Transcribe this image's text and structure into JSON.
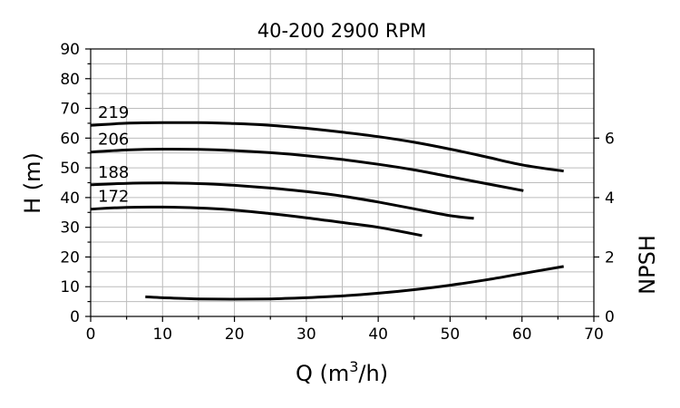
{
  "chart_data": {
    "type": "line",
    "title": "40-200 2900 RPM",
    "xlabel": "Q (m³/h)",
    "ylabel": "H (m)",
    "y2label": "NPSH",
    "xlim": [
      0,
      70
    ],
    "ylim": [
      0,
      90
    ],
    "y2lim": [
      0,
      9
    ],
    "xticks": [
      0,
      10,
      20,
      30,
      40,
      50,
      60,
      70
    ],
    "yticks": [
      0,
      10,
      20,
      30,
      40,
      50,
      60,
      70,
      80,
      90
    ],
    "y2ticks": [
      0,
      2,
      4,
      6
    ],
    "grid": true,
    "series": [
      {
        "name": "219",
        "axis": "left",
        "x": [
          0,
          5,
          10,
          15,
          20,
          25,
          30,
          35,
          40,
          45,
          50,
          55,
          60,
          65.8
        ],
        "y": [
          64.3,
          65.0,
          65.2,
          65.2,
          64.9,
          64.3,
          63.3,
          62.0,
          60.5,
          58.6,
          56.3,
          53.7,
          51.0,
          48.9
        ]
      },
      {
        "name": "206",
        "axis": "left",
        "x": [
          0,
          5,
          10,
          15,
          20,
          25,
          30,
          35,
          40,
          45,
          50,
          55,
          60.2
        ],
        "y": [
          55.3,
          56.0,
          56.3,
          56.2,
          55.8,
          55.1,
          54.1,
          52.8,
          51.2,
          49.3,
          47.0,
          44.7,
          42.3
        ]
      },
      {
        "name": "188",
        "axis": "left",
        "x": [
          0,
          5,
          10,
          15,
          20,
          25,
          30,
          35,
          40,
          45,
          50,
          53.3
        ],
        "y": [
          44.3,
          44.8,
          44.9,
          44.7,
          44.1,
          43.2,
          42.0,
          40.5,
          38.5,
          36.2,
          33.9,
          33.0
        ]
      },
      {
        "name": "172",
        "axis": "left",
        "x": [
          0,
          5,
          10,
          15,
          20,
          25,
          30,
          35,
          40,
          46.1
        ],
        "y": [
          36.1,
          36.7,
          36.8,
          36.5,
          35.8,
          34.6,
          33.2,
          31.6,
          30.0,
          27.2
        ]
      },
      {
        "name": "",
        "axis": "right",
        "x": [
          7.6,
          10,
          15,
          20,
          25,
          30,
          35,
          40,
          45,
          50,
          55,
          60,
          65.8
        ],
        "y": [
          0.66,
          0.63,
          0.59,
          0.58,
          0.59,
          0.63,
          0.69,
          0.78,
          0.9,
          1.05,
          1.23,
          1.44,
          1.68
        ]
      }
    ]
  }
}
